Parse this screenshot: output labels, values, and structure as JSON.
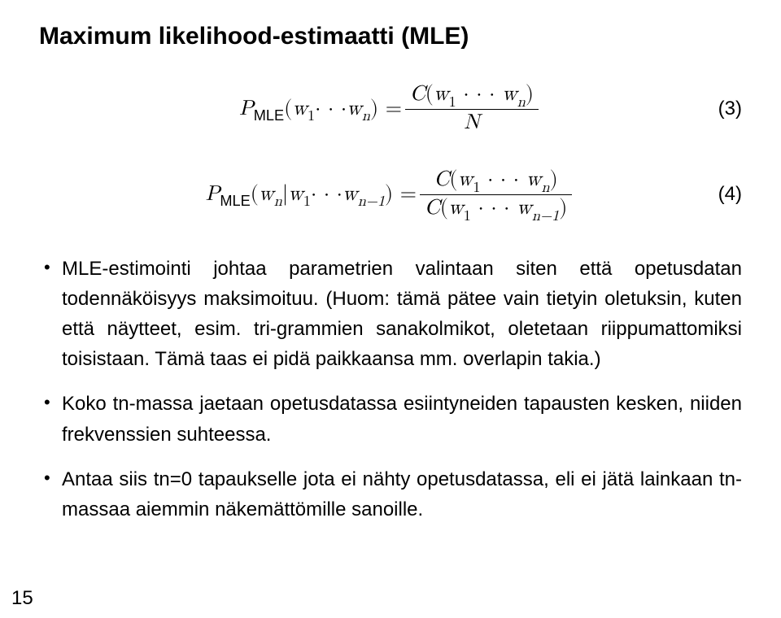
{
  "title": "Maximum likelihood-estimaatti (MLE)",
  "eq1": {
    "lhs_P": "P",
    "lhs_sub": "MLE",
    "args": "(w",
    "w1s": "1",
    "dots": " · · · ",
    "wn": "w",
    "wns": "n",
    "close": ") = ",
    "num_C": "C(w",
    "num_w1s": "1",
    "num_dots": " · · · ",
    "num_wn": "w",
    "num_wns": "n",
    "num_close": ")",
    "den": "N",
    "number": "(3)"
  },
  "eq2": {
    "lhs_P": "P",
    "lhs_sub": "MLE",
    "open": "(w",
    "wn_s": "n",
    "bar": "|w",
    "w1s": "1",
    "dots": " · · · ",
    "wnm1": "w",
    "wnm1_s": "n−1",
    "close": ") = ",
    "num_C": "C(w",
    "num_w1s": "1",
    "num_dots": " · · · ",
    "num_wn": "w",
    "num_wns": "n",
    "num_close": ")",
    "den_C": "C(w",
    "den_w1s": "1",
    "den_dots": " · · · ",
    "den_wnm1": "w",
    "den_wnm1_s": "n−1",
    "den_close": ")",
    "number": "(4)"
  },
  "bullets": {
    "b1": "MLE-estimointi johtaa parametrien valintaan siten että opetusdatan todennäköisyys maksimoituu. (Huom: tämä pätee vain tietyin oletuksin, kuten että näytteet, esim. tri-grammien sanakolmikot, oletetaan riippumattomiksi toisistaan. Tämä taas ei pidä paikkaansa mm. overlapin takia.)",
    "b2": "Koko tn-massa jaetaan opetusdatassa esiintyneiden tapausten kesken, niiden frekvenssien suhteessa.",
    "b3": "Antaa siis tn=0 tapaukselle jota ei nähty opetusdatassa, eli ei jätä lainkaan tn-massaa aiemmin näkemättömille sanoille."
  },
  "pagenum": "15",
  "colors": {
    "bg": "#ffffff",
    "text": "#000000"
  }
}
